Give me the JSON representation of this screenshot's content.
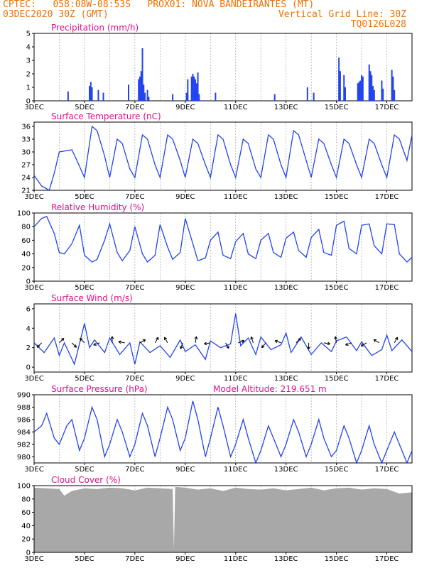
{
  "header": {
    "line1_left": "CPTEC:   058:08W-08:53S   PROX01: NOVA BANDEIRANTES (MT)",
    "line2_left": "03DEC2020 30Z (GMT)",
    "line2_right": "Vertical Grid Line: 30Z",
    "line3_right": "TQ0126L028"
  },
  "colors": {
    "header": "#f07000",
    "panel_title": "#e0108a",
    "series": "#2244ee",
    "cloud": "#a8a8a8",
    "grid": "#999999"
  },
  "x_axis": {
    "labels": [
      "3DEC",
      "5DEC",
      "7DEC",
      "9DEC",
      "11DEC",
      "13DEC",
      "15DEC",
      "17DEC"
    ],
    "label_days": [
      0,
      2,
      4,
      6,
      8,
      10,
      12,
      14
    ],
    "range_days": [
      0,
      15
    ],
    "grid_days": [
      0,
      1,
      2,
      3,
      4,
      5,
      6,
      7,
      8,
      9,
      10,
      11,
      12,
      13,
      14,
      15
    ]
  },
  "chart_data": [
    {
      "type": "bar",
      "title": "Precipitation (mm/h)",
      "ylim": [
        0,
        5
      ],
      "yticks": [
        "0",
        "1",
        "2",
        "3",
        "4",
        "5"
      ],
      "x_days": [
        1.35,
        2.2,
        2.25,
        2.3,
        2.55,
        2.75,
        3.75,
        4.15,
        4.2,
        4.25,
        4.3,
        4.35,
        4.4,
        4.5,
        4.55,
        5.5,
        6.05,
        6.1,
        6.25,
        6.3,
        6.35,
        6.4,
        6.45,
        6.5,
        6.55,
        7.2,
        9.55,
        10.85,
        11.1,
        12.1,
        12.15,
        12.3,
        12.35,
        12.85,
        12.9,
        12.95,
        13.0,
        13.05,
        13.3,
        13.35,
        13.4,
        13.45,
        13.5,
        13.8,
        13.85,
        14.2,
        14.25,
        14.3
      ],
      "values": [
        0.7,
        1.1,
        1.4,
        1.0,
        0.8,
        0.6,
        1.2,
        1.6,
        1.8,
        2.2,
        3.9,
        1.2,
        0.6,
        0.8,
        0.3,
        0.5,
        0.6,
        1.6,
        1.8,
        2.0,
        1.8,
        1.6,
        1.3,
        2.1,
        0.5,
        0.6,
        0.5,
        1.0,
        0.6,
        3.2,
        2.2,
        1.9,
        1.0,
        1.3,
        1.4,
        1.5,
        1.9,
        1.8,
        2.7,
        2.2,
        1.9,
        1.1,
        0.8,
        1.5,
        0.9,
        2.3,
        1.8,
        0.8
      ]
    },
    {
      "type": "line",
      "title": "Surface Temperature (nC)",
      "ylim": [
        21,
        37
      ],
      "yticks": [
        "21",
        "24",
        "27",
        "30",
        "33",
        "36"
      ],
      "x_days": [
        0,
        0.3,
        0.6,
        0.8,
        1.0,
        1.5,
        1.7,
        2.0,
        2.3,
        2.5,
        2.8,
        3.0,
        3.3,
        3.5,
        3.8,
        4.0,
        4.3,
        4.5,
        4.8,
        5.0,
        5.3,
        5.5,
        5.8,
        6.0,
        6.3,
        6.5,
        6.8,
        7.0,
        7.3,
        7.5,
        7.8,
        8.0,
        8.3,
        8.5,
        8.8,
        9.0,
        9.3,
        9.5,
        9.8,
        10.0,
        10.3,
        10.5,
        10.8,
        11.0,
        11.3,
        11.5,
        11.8,
        12.0,
        12.3,
        12.5,
        12.8,
        13.0,
        13.3,
        13.5,
        13.8,
        14.0,
        14.3,
        14.5,
        14.8,
        15.0
      ],
      "values": [
        24.5,
        22,
        21,
        25,
        30,
        30.5,
        28,
        24,
        36,
        35,
        29,
        24,
        33,
        32,
        26,
        24,
        34,
        33,
        27,
        24,
        34,
        33,
        28,
        24,
        33,
        32,
        27,
        24,
        34,
        33,
        27,
        24,
        33,
        32,
        26,
        24,
        34,
        33,
        27,
        24,
        35,
        34,
        28,
        24,
        33,
        32,
        27,
        24,
        33,
        32,
        27,
        24,
        33,
        32,
        27,
        24,
        34,
        33,
        28,
        34
      ]
    },
    {
      "type": "line",
      "title": "Relative Humidity (%)",
      "ylim": [
        0,
        100
      ],
      "yticks": [
        "0",
        "20",
        "40",
        "60",
        "80",
        "100"
      ],
      "x_days": [
        0,
        0.3,
        0.5,
        0.8,
        1.0,
        1.2,
        1.5,
        1.8,
        2.0,
        2.3,
        2.5,
        2.8,
        3.0,
        3.3,
        3.5,
        3.8,
        4.0,
        4.3,
        4.5,
        4.8,
        5.0,
        5.3,
        5.5,
        5.8,
        6.0,
        6.3,
        6.5,
        6.8,
        7.0,
        7.3,
        7.5,
        7.8,
        8.0,
        8.3,
        8.5,
        8.8,
        9.0,
        9.3,
        9.5,
        9.8,
        10.0,
        10.3,
        10.5,
        10.8,
        11.0,
        11.3,
        11.5,
        11.8,
        12.0,
        12.3,
        12.5,
        12.8,
        13.0,
        13.3,
        13.5,
        13.8,
        14.0,
        14.3,
        14.5,
        14.8,
        15.0
      ],
      "values": [
        80,
        92,
        95,
        70,
        42,
        40,
        55,
        82,
        38,
        28,
        32,
        60,
        84,
        42,
        30,
        45,
        80,
        40,
        28,
        38,
        83,
        50,
        32,
        42,
        92,
        55,
        30,
        34,
        60,
        72,
        38,
        33,
        58,
        70,
        40,
        33,
        60,
        70,
        42,
        35,
        63,
        72,
        45,
        35,
        64,
        76,
        42,
        38,
        82,
        88,
        48,
        40,
        82,
        84,
        52,
        40,
        84,
        83,
        40,
        28,
        35
      ]
    },
    {
      "type": "line",
      "title": "Surface Wind (m/s)",
      "ylim": [
        -0.5,
        6.5
      ],
      "yticks": [
        "0",
        "2",
        "4",
        "6"
      ],
      "x_days": [
        0,
        0.4,
        0.8,
        1.0,
        1.2,
        1.6,
        2.0,
        2.2,
        2.4,
        2.8,
        3.0,
        3.4,
        3.8,
        4.0,
        4.2,
        4.6,
        5.0,
        5.4,
        5.8,
        6.0,
        6.4,
        6.8,
        7.0,
        7.4,
        7.8,
        8.0,
        8.2,
        8.5,
        8.8,
        9.0,
        9.4,
        9.8,
        10.0,
        10.2,
        10.6,
        11.0,
        11.4,
        11.8,
        12.0,
        12.4,
        12.8,
        13.0,
        13.4,
        13.8,
        14.0,
        14.2,
        14.6,
        15.0
      ],
      "values": [
        2.5,
        1.5,
        3,
        1.2,
        2.5,
        0.3,
        4.5,
        2,
        2.8,
        1.5,
        3,
        1.3,
        2.5,
        0.3,
        2.6,
        1.5,
        2.2,
        1,
        2.8,
        1.6,
        2.3,
        0.8,
        2.7,
        2,
        2.4,
        5.5,
        2.2,
        3,
        1.3,
        3.1,
        1.8,
        2.3,
        3.5,
        1.5,
        3.1,
        1.3,
        2.5,
        1.6,
        2.7,
        3.1,
        1.7,
        2.6,
        1.2,
        1.8,
        3.3,
        1.7,
        2.8,
        1.6
      ],
      "arrows_days": [
        0.3,
        1.0,
        1.5,
        2.0,
        2.6,
        3.1,
        3.6,
        4.2,
        4.8,
        5.3,
        5.9,
        6.4,
        7.0,
        7.6,
        8.1,
        8.7,
        9.2,
        9.8,
        10.4,
        10.9,
        11.5,
        12.0,
        12.6,
        13.2,
        13.7,
        14.3
      ],
      "arrows_dir_deg": [
        225,
        45,
        315,
        135,
        200,
        90,
        170,
        30,
        60,
        120,
        250,
        80,
        190,
        300,
        20,
        110,
        230,
        160,
        45,
        270,
        350,
        100,
        200,
        210,
        150,
        60
      ]
    },
    {
      "type": "line",
      "title": "Surface Pressure (hPa)",
      "model_altitude": "Model Altitude: 219.651 m",
      "ylim": [
        979,
        990
      ],
      "yticks": [
        "980",
        "982",
        "984",
        "986",
        "988",
        "990"
      ],
      "x_days": [
        0,
        0.3,
        0.5,
        0.8,
        1.0,
        1.3,
        1.5,
        1.8,
        2.0,
        2.3,
        2.5,
        2.8,
        3.0,
        3.3,
        3.5,
        3.8,
        4.0,
        4.3,
        4.5,
        4.8,
        5.0,
        5.3,
        5.5,
        5.8,
        6.0,
        6.3,
        6.5,
        6.8,
        7.0,
        7.3,
        7.5,
        7.8,
        8.0,
        8.3,
        8.5,
        8.8,
        9.0,
        9.3,
        9.5,
        9.8,
        10.0,
        10.3,
        10.5,
        10.8,
        11.0,
        11.3,
        11.5,
        11.8,
        12.0,
        12.3,
        12.5,
        12.8,
        13.0,
        13.3,
        13.5,
        13.8,
        14.0,
        14.3,
        14.5,
        14.8,
        15.0
      ],
      "values": [
        984,
        985,
        987,
        983,
        982,
        985,
        986,
        981,
        983,
        988,
        986,
        980,
        982,
        986,
        984,
        980,
        982,
        987,
        985,
        980,
        983,
        988,
        986,
        981,
        983,
        989,
        986,
        980,
        983,
        988,
        985,
        980,
        982,
        986,
        983,
        979,
        981,
        985,
        983,
        980,
        982,
        986,
        984,
        980,
        982,
        986,
        983,
        980,
        981,
        985,
        983,
        979,
        981,
        985,
        982,
        979,
        981,
        984,
        982,
        979,
        981
      ]
    },
    {
      "type": "area",
      "title": "Cloud Cover (%)",
      "ylim": [
        0,
        100
      ],
      "yticks": [
        "0",
        "20",
        "40",
        "60",
        "80",
        "100"
      ],
      "x_days": [
        0,
        0.5,
        1.0,
        1.2,
        1.5,
        2.0,
        2.5,
        3.0,
        3.5,
        4.0,
        4.5,
        5.0,
        5.5,
        5.55,
        5.6,
        6.0,
        6.5,
        7.0,
        7.5,
        8.0,
        8.5,
        9.0,
        9.5,
        10.0,
        10.5,
        11.0,
        11.5,
        12.0,
        12.5,
        13.0,
        13.5,
        14.0,
        14.5,
        15.0
      ],
      "values": [
        97,
        96,
        95,
        85,
        92,
        96,
        95,
        97,
        96,
        93,
        97,
        96,
        95,
        4,
        98,
        97,
        94,
        96,
        92,
        97,
        95,
        94,
        96,
        93,
        95,
        97,
        93,
        96,
        97,
        94,
        96,
        95,
        88,
        90
      ]
    }
  ]
}
